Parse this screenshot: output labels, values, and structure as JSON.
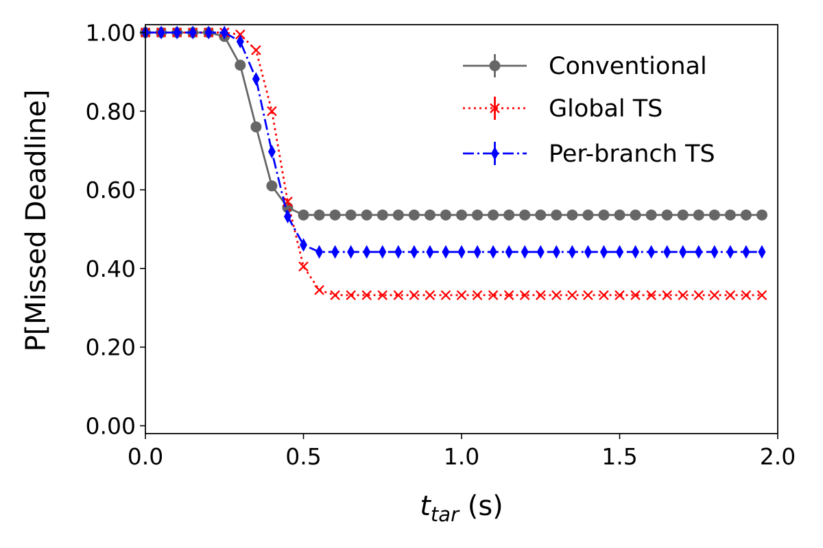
{
  "chart_data": {
    "type": "line",
    "title": "",
    "ylabel": "P[Missed Deadline]",
    "xlabel": {
      "main": "t",
      "subscript": "tar",
      "unit": " (s)"
    },
    "xlim": [
      0.0,
      2.0
    ],
    "ylim": [
      -0.02,
      1.02
    ],
    "xticks": [
      0.0,
      0.5,
      1.0,
      1.5,
      2.0
    ],
    "xtick_labels": [
      "0.0",
      "0.5",
      "1.0",
      "1.5",
      "2.0"
    ],
    "yticks": [
      0.0,
      0.2,
      0.4,
      0.6,
      0.8,
      1.0
    ],
    "ytick_labels": [
      "0.00",
      "0.20",
      "0.40",
      "0.60",
      "0.80",
      "1.00"
    ],
    "grid": false,
    "legend_position": "top-right",
    "x": [
      0.0,
      0.05,
      0.1,
      0.15,
      0.2,
      0.25,
      0.3,
      0.35,
      0.4,
      0.45,
      0.5,
      0.55,
      0.6,
      0.65,
      0.7,
      0.75,
      0.8,
      0.85,
      0.9,
      0.95,
      1.0,
      1.05,
      1.1,
      1.15,
      1.2,
      1.25,
      1.3,
      1.35,
      1.4,
      1.45,
      1.5,
      1.55,
      1.6,
      1.65,
      1.7,
      1.75,
      1.8,
      1.85,
      1.9,
      1.95
    ],
    "series": [
      {
        "name": "Conventional",
        "color": "#666666",
        "line_style": "solid",
        "marker": "circle",
        "values": [
          1.0,
          1.0,
          1.0,
          1.0,
          1.0,
          0.99,
          0.917,
          0.76,
          0.61,
          0.555,
          0.536,
          0.536,
          0.536,
          0.536,
          0.536,
          0.536,
          0.536,
          0.536,
          0.536,
          0.536,
          0.536,
          0.536,
          0.536,
          0.536,
          0.536,
          0.536,
          0.536,
          0.536,
          0.536,
          0.536,
          0.536,
          0.536,
          0.536,
          0.536,
          0.536,
          0.536,
          0.536,
          0.536,
          0.536,
          0.536
        ]
      },
      {
        "name": "Global TS",
        "color": "#ff0000",
        "line_style": "dotted",
        "marker": "x",
        "values": [
          1.0,
          1.0,
          1.0,
          1.0,
          1.0,
          1.0,
          0.995,
          0.955,
          0.8,
          0.57,
          0.405,
          0.345,
          0.332,
          0.332,
          0.332,
          0.332,
          0.332,
          0.332,
          0.332,
          0.332,
          0.332,
          0.332,
          0.332,
          0.332,
          0.332,
          0.332,
          0.332,
          0.332,
          0.332,
          0.332,
          0.332,
          0.332,
          0.332,
          0.332,
          0.332,
          0.332,
          0.332,
          0.332,
          0.332,
          0.332
        ]
      },
      {
        "name": "Per-branch TS",
        "color": "#0000ff",
        "line_style": "dashdot",
        "marker": "thin-diamond",
        "values": [
          1.0,
          1.0,
          1.0,
          1.0,
          1.0,
          1.0,
          0.977,
          0.882,
          0.697,
          0.532,
          0.46,
          0.442,
          0.442,
          0.442,
          0.442,
          0.442,
          0.442,
          0.442,
          0.442,
          0.442,
          0.442,
          0.442,
          0.442,
          0.442,
          0.442,
          0.442,
          0.442,
          0.442,
          0.442,
          0.442,
          0.442,
          0.442,
          0.442,
          0.442,
          0.442,
          0.442,
          0.442,
          0.442,
          0.442,
          0.442
        ]
      }
    ]
  }
}
